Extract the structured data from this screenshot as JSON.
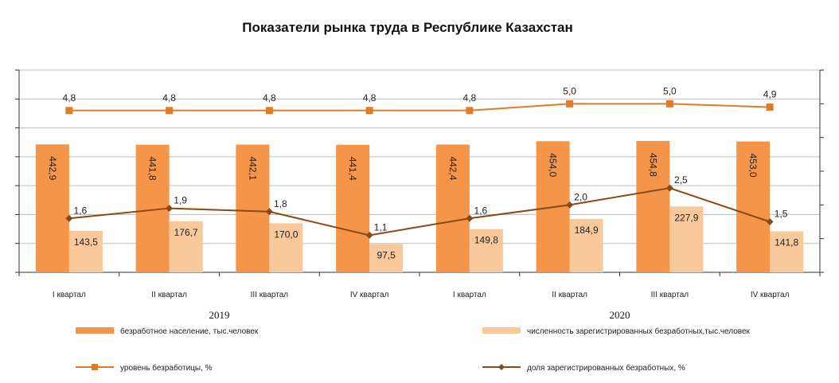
{
  "chart_data": {
    "type": "bar",
    "title": "Показатели рынка труда в Республике Казахстан",
    "categories": [
      "I квартал",
      "II квартал",
      "III квартал",
      "IV квартал",
      "I квартал",
      "II квартал",
      "III квартал",
      "IV квартал"
    ],
    "years": [
      {
        "label": "2019",
        "categories": [
          0,
          1,
          2,
          3
        ]
      },
      {
        "label": "2020",
        "categories": [
          4,
          5,
          6,
          7
        ]
      }
    ],
    "series": [
      {
        "name": "безработное население, тыс.человек",
        "kind": "bar",
        "axis": "primary",
        "color": "#F4954A",
        "values": [
          442.9,
          441.8,
          442.1,
          441.4,
          442.4,
          454.0,
          454.8,
          453.0
        ],
        "labels": [
          "442,9",
          "441,8",
          "442,1",
          "441,4",
          "442,4",
          "454,0",
          "454,8",
          "453,0"
        ]
      },
      {
        "name": "численность зарегистрированных безработных,тыс.человек",
        "kind": "bar",
        "axis": "primary",
        "color": "#F9C89B",
        "values": [
          143.5,
          176.7,
          170.0,
          97.5,
          149.8,
          184.9,
          227.9,
          141.8
        ],
        "labels": [
          "143,5",
          "176,7",
          "170,0",
          "97,5",
          "149,8",
          "184,9",
          "227,9",
          "141,8"
        ]
      },
      {
        "name": "уровень безработицы, %",
        "kind": "line",
        "axis": "secondary",
        "marker": "square",
        "color": "#E07B28",
        "values": [
          4.8,
          4.8,
          4.8,
          4.8,
          4.8,
          5.0,
          5.0,
          4.9
        ],
        "labels": [
          "4,8",
          "4,8",
          "4,8",
          "4,8",
          "4,8",
          "5,0",
          "5,0",
          "4,9"
        ]
      },
      {
        "name": "доля зарегистрированных безработных, %",
        "kind": "line",
        "axis": "secondary",
        "marker": "diamond",
        "color": "#8A4A16",
        "values": [
          1.6,
          1.9,
          1.8,
          1.1,
          1.6,
          2.0,
          2.5,
          1.5
        ],
        "labels": [
          "1,6",
          "1,9",
          "1,8",
          "1,1",
          "1,6",
          "2,0",
          "2,5",
          "1,5"
        ]
      }
    ],
    "ylim": [
      0,
      700
    ],
    "y2lim": [
      0,
      6
    ],
    "axis_labels_shown": false,
    "legend_position": "bottom"
  }
}
